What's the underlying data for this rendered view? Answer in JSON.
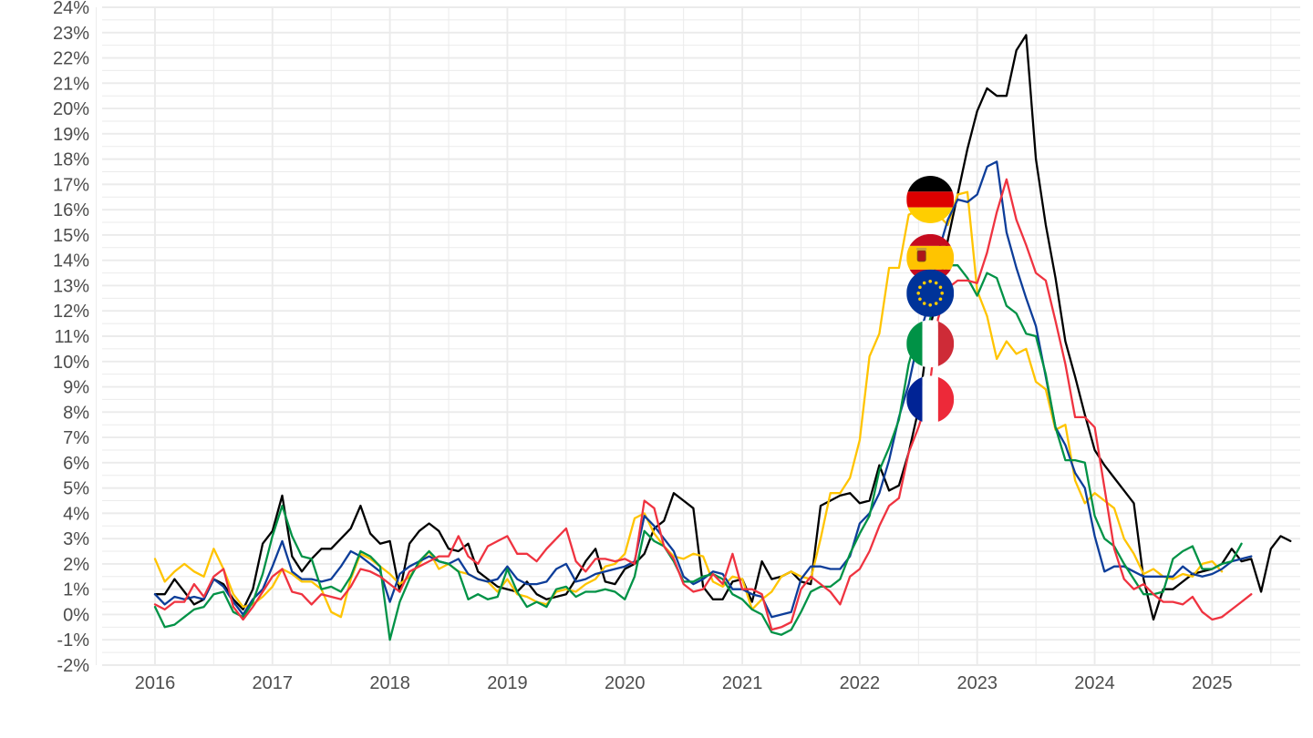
{
  "chart_data": {
    "type": "line",
    "title": "",
    "xlabel": "",
    "ylabel": "",
    "ylim": [
      -2,
      24
    ],
    "xlim": [
      2015.55,
      2025.75
    ],
    "y_ticks": [
      -2,
      -1,
      0,
      1,
      2,
      3,
      4,
      5,
      6,
      7,
      8,
      9,
      10,
      11,
      12,
      13,
      14,
      15,
      16,
      17,
      18,
      19,
      20,
      21,
      22,
      23,
      24
    ],
    "y_tick_format": "{v}%",
    "x_ticks": [
      2016,
      2017,
      2018,
      2019,
      2020,
      2021,
      2022,
      2023,
      2024,
      2025
    ],
    "grid": true,
    "legend": "flag icons at the series near 2022.6",
    "x_start": 2016.0,
    "x_step": 0.0833333,
    "series": [
      {
        "flag": "germany-flag",
        "color": "#000000",
        "values": [
          0.8,
          0.8,
          1.4,
          0.9,
          0.4,
          0.6,
          1.4,
          1.2,
          0.6,
          0.2,
          1.0,
          2.8,
          3.3,
          4.7,
          2.3,
          1.7,
          2.2,
          2.6,
          2.6,
          3.0,
          3.4,
          4.3,
          3.2,
          2.8,
          2.9,
          0.9,
          2.8,
          3.3,
          3.6,
          3.3,
          2.6,
          2.5,
          2.8,
          1.7,
          1.4,
          1.1,
          1.0,
          0.9,
          1.3,
          0.8,
          0.6,
          0.7,
          0.8,
          1.4,
          2.1,
          2.6,
          1.3,
          1.2,
          1.8,
          2.0,
          2.4,
          3.4,
          3.7,
          4.8,
          4.5,
          4.2,
          1.1,
          0.6,
          0.6,
          1.3,
          1.4,
          0.5,
          2.1,
          1.4,
          1.5,
          1.7,
          1.3,
          1.2,
          4.3,
          4.5,
          4.7,
          4.8,
          4.4,
          4.5,
          5.9,
          4.9,
          5.1,
          6.4,
          8.1,
          11.1,
          12.6,
          14.8,
          16.6,
          18.4,
          19.9,
          20.8,
          20.5,
          20.5,
          22.3,
          22.9,
          18.0,
          15.4,
          13.3,
          10.8,
          9.4,
          7.9,
          6.5,
          5.9,
          5.4,
          4.9,
          4.4,
          1.4,
          -0.2,
          1.0,
          1.0,
          1.3,
          1.6,
          1.7,
          1.8,
          2.0,
          2.6,
          2.1,
          2.2,
          0.9,
          2.6,
          3.1,
          2.9
        ]
      },
      {
        "flag": "spain-flag",
        "color": "#ffc400",
        "values": [
          2.2,
          1.3,
          1.7,
          2.0,
          1.7,
          1.5,
          2.6,
          1.8,
          0.8,
          0.3,
          0.4,
          0.7,
          1.1,
          1.8,
          1.6,
          1.3,
          1.3,
          1.0,
          0.1,
          -0.1,
          1.4,
          2.4,
          2.2,
          1.9,
          1.6,
          1.2,
          1.5,
          2.0,
          2.5,
          1.8,
          2.0,
          1.7,
          1.6,
          1.4,
          1.3,
          0.9,
          1.4,
          0.8,
          0.7,
          0.5,
          0.4,
          0.9,
          1.0,
          0.9,
          1.2,
          1.4,
          1.9,
          2.0,
          2.4,
          3.8,
          4.0,
          3.2,
          2.7,
          2.3,
          2.2,
          2.4,
          2.3,
          1.3,
          1.1,
          1.5,
          1.4,
          0.2,
          0.6,
          0.9,
          1.5,
          1.7,
          1.5,
          1.4,
          3.0,
          4.8,
          4.8,
          5.4,
          6.9,
          10.2,
          11.1,
          13.7,
          13.7,
          15.8,
          16.0,
          15.6,
          15.8,
          15.4,
          16.6,
          16.7,
          12.8,
          11.8,
          10.1,
          10.8,
          10.3,
          10.5,
          9.2,
          8.9,
          7.3,
          7.5,
          5.3,
          4.4,
          4.8,
          4.5,
          4.2,
          3.0,
          2.4,
          1.6,
          1.8,
          1.5,
          1.4,
          1.6,
          1.5,
          2.0,
          2.1,
          1.7
        ]
      },
      {
        "flag": "eu-flag",
        "color": "#0d3d99",
        "values": [
          0.8,
          0.4,
          0.7,
          0.6,
          0.7,
          0.6,
          1.4,
          1.1,
          0.5,
          0.0,
          0.6,
          1.0,
          1.9,
          2.9,
          1.7,
          1.4,
          1.4,
          1.3,
          1.4,
          1.9,
          2.5,
          2.3,
          2.0,
          1.7,
          0.5,
          1.6,
          1.9,
          2.1,
          2.3,
          2.1,
          2.0,
          2.2,
          1.6,
          1.4,
          1.3,
          1.4,
          1.9,
          1.4,
          1.2,
          1.2,
          1.3,
          1.8,
          2.0,
          1.3,
          1.4,
          1.6,
          1.7,
          1.8,
          1.9,
          2.1,
          3.9,
          3.5,
          3.0,
          2.5,
          1.5,
          1.2,
          1.4,
          1.7,
          1.6,
          1.0,
          1.0,
          0.8,
          0.7,
          -0.1,
          0.0,
          0.1,
          1.4,
          1.9,
          1.9,
          1.8,
          1.8,
          2.3,
          3.6,
          4.0,
          4.8,
          6.1,
          7.8,
          9.1,
          10.9,
          12.2,
          14.3,
          15.6,
          16.4,
          16.3,
          16.6,
          17.7,
          17.9,
          15.1,
          13.7,
          12.5,
          11.4,
          9.4,
          7.4,
          6.7,
          5.6,
          5.0,
          3.1,
          1.7,
          1.9,
          1.9,
          1.7,
          1.5,
          1.5,
          1.5,
          1.5,
          1.9,
          1.6,
          1.5,
          1.6,
          1.8,
          2.1,
          2.2,
          2.3
        ]
      },
      {
        "flag": "italy-flag",
        "color": "#009246",
        "values": [
          0.3,
          -0.5,
          -0.4,
          -0.1,
          0.2,
          0.3,
          0.8,
          0.9,
          0.1,
          -0.1,
          0.5,
          1.6,
          3.1,
          4.3,
          3.1,
          2.3,
          2.2,
          1.0,
          1.1,
          0.9,
          1.5,
          2.5,
          2.3,
          1.9,
          -1.0,
          0.5,
          1.4,
          2.1,
          2.5,
          2.1,
          2.0,
          1.7,
          0.6,
          0.8,
          0.6,
          0.7,
          1.8,
          0.9,
          0.3,
          0.5,
          0.3,
          1.0,
          1.1,
          0.7,
          0.9,
          0.9,
          1.0,
          0.9,
          0.6,
          1.5,
          3.3,
          2.9,
          2.7,
          2.1,
          1.3,
          1.3,
          1.5,
          1.6,
          1.4,
          0.8,
          0.6,
          0.2,
          0.0,
          -0.7,
          -0.8,
          -0.6,
          0.1,
          0.9,
          1.1,
          1.1,
          1.4,
          2.4,
          3.2,
          3.9,
          5.7,
          6.6,
          7.7,
          9.9,
          11.3,
          11.4,
          12.9,
          13.8,
          13.8,
          13.3,
          12.6,
          13.5,
          13.3,
          12.2,
          11.9,
          11.1,
          11.0,
          9.5,
          7.4,
          6.1,
          6.1,
          6.0,
          3.9,
          3.0,
          2.7,
          2.0,
          1.4,
          0.8,
          0.8,
          0.9,
          2.2,
          2.5,
          2.7,
          1.8,
          1.8,
          2.0,
          2.1,
          2.8
        ]
      },
      {
        "flag": "france-flag",
        "color": "#ef3340",
        "values": [
          0.4,
          0.2,
          0.5,
          0.5,
          1.2,
          0.7,
          1.5,
          1.8,
          0.3,
          -0.2,
          0.3,
          0.9,
          1.5,
          1.8,
          0.9,
          0.8,
          0.4,
          0.8,
          0.7,
          0.6,
          1.1,
          1.8,
          1.7,
          1.5,
          1.2,
          0.9,
          1.7,
          1.9,
          2.1,
          2.3,
          2.3,
          3.1,
          2.3,
          2.0,
          2.7,
          2.9,
          3.1,
          2.4,
          2.4,
          2.1,
          2.6,
          3.0,
          3.4,
          2.1,
          1.7,
          2.2,
          2.2,
          2.1,
          2.2,
          2.0,
          4.5,
          4.2,
          2.7,
          2.2,
          1.2,
          0.9,
          1.0,
          1.6,
          1.2,
          2.4,
          1.0,
          1.0,
          0.8,
          -0.6,
          -0.5,
          -0.3,
          1.0,
          1.5,
          1.2,
          0.9,
          0.4,
          1.5,
          1.8,
          2.5,
          3.5,
          4.3,
          4.6,
          6.4,
          7.4,
          8.6,
          11.7,
          12.9,
          13.2,
          13.2,
          13.1,
          14.3,
          15.9,
          17.2,
          15.6,
          14.6,
          13.5,
          13.2,
          11.6,
          9.9,
          7.8,
          7.8,
          7.4,
          5.0,
          2.6,
          1.4,
          1.0,
          1.2,
          0.8,
          0.5,
          0.5,
          0.4,
          0.7,
          0.1,
          -0.2,
          -0.1,
          0.2,
          0.5,
          0.8
        ]
      }
    ]
  },
  "legend_icons": [
    {
      "flag": "germany-flag",
      "y": 16.4
    },
    {
      "flag": "spain-flag",
      "y": 14.1
    },
    {
      "flag": "eu-flag",
      "y": 12.7
    },
    {
      "flag": "italy-flag",
      "y": 10.7
    },
    {
      "flag": "france-flag",
      "y": 8.5
    }
  ]
}
